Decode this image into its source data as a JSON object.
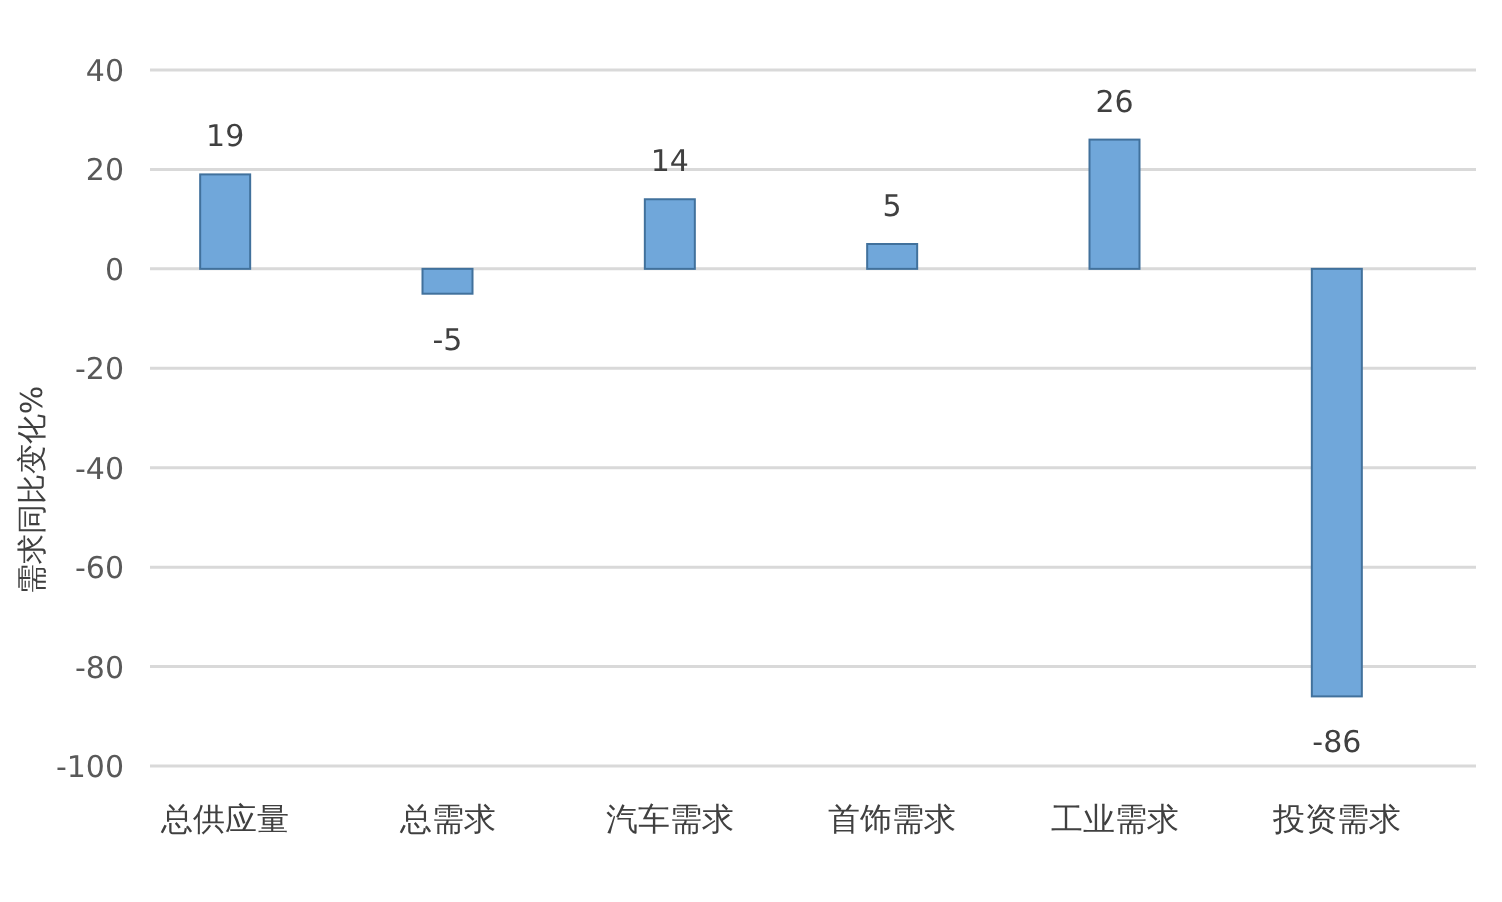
{
  "chart_data": {
    "type": "bar",
    "ylabel": "需求同比变化%",
    "categories": [
      "总供应量",
      "总需求",
      "汽车需求",
      "首饰需求",
      "工业需求",
      "投资需求"
    ],
    "values": [
      19,
      -5,
      14,
      5,
      26,
      -86
    ],
    "color": "#70a7da",
    "ylim": [
      -100,
      40
    ],
    "yticks": [
      -100,
      -80,
      -60,
      -40,
      -20,
      0,
      20,
      40
    ],
    "grid": "y",
    "data_labels": true
  }
}
